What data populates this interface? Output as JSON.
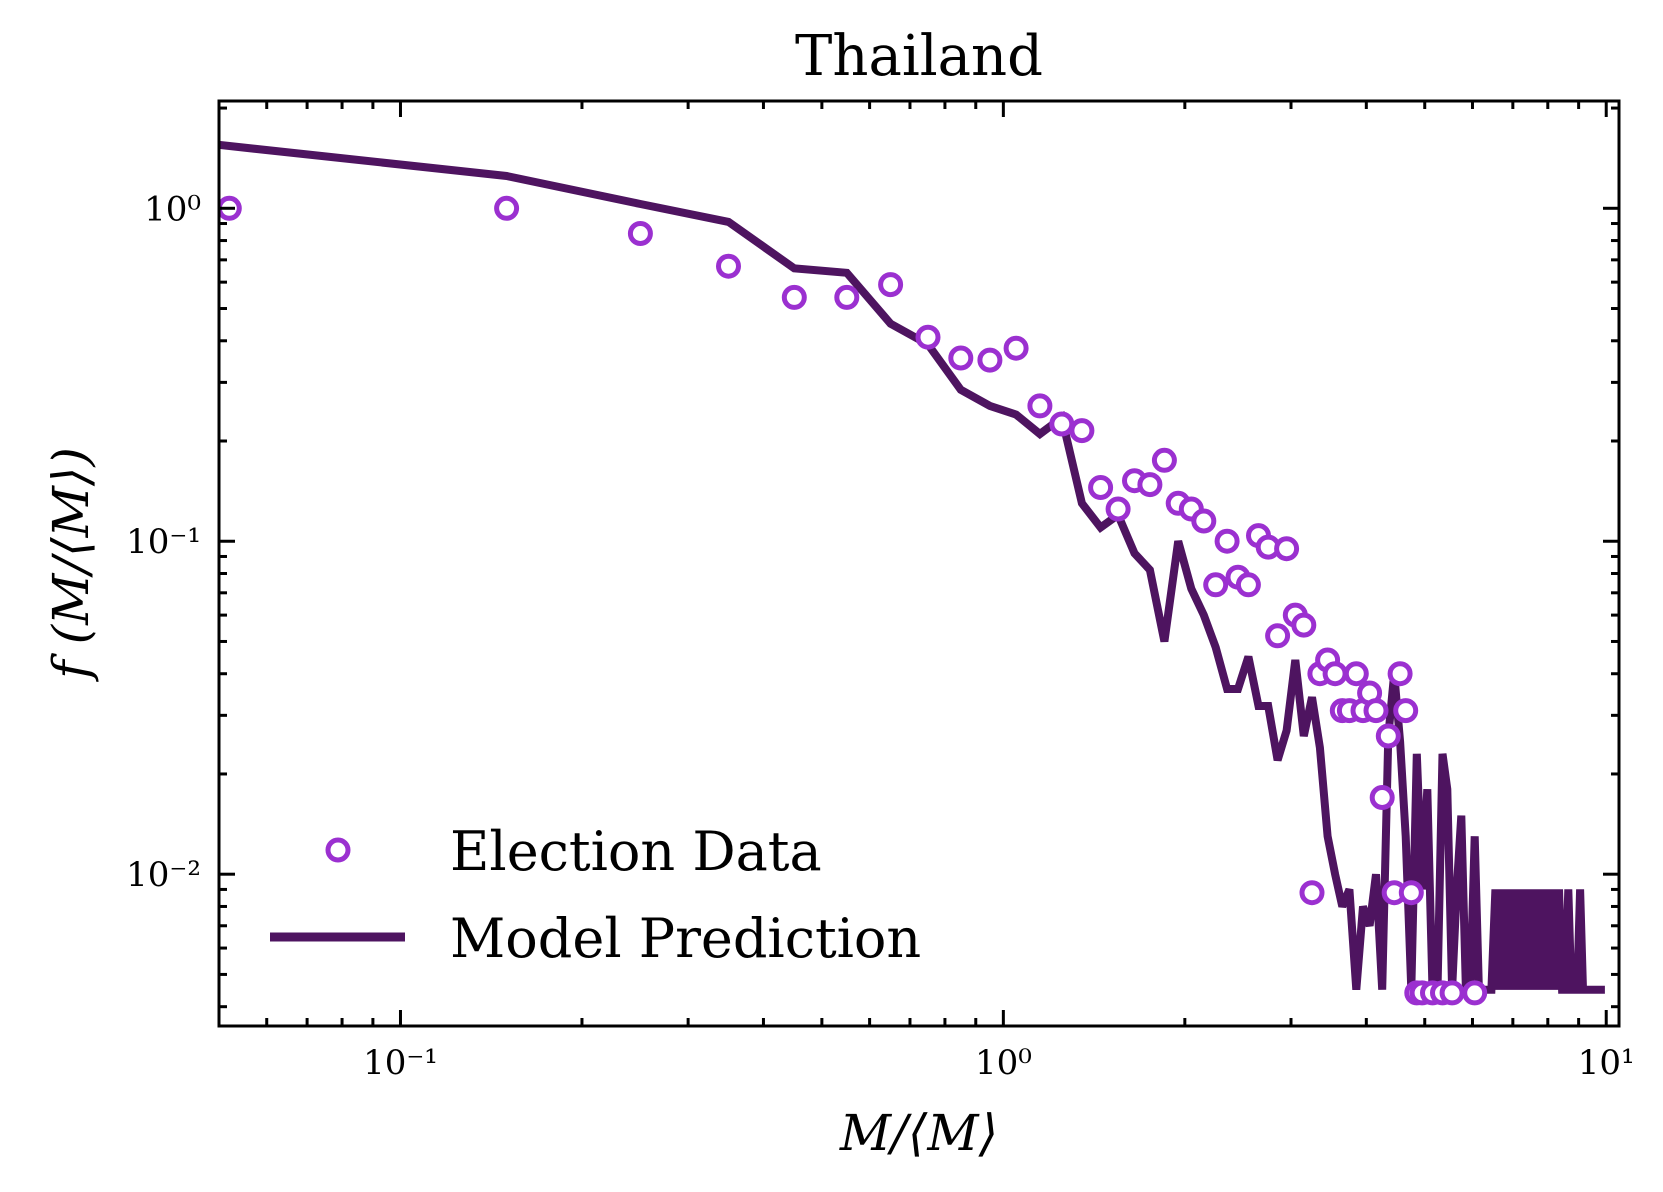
{
  "chart_data": {
    "type": "scatter",
    "title": "Thailand",
    "xlabel": "M/⟨M⟩",
    "ylabel": "f (M/⟨M⟩)",
    "xscale": "log",
    "yscale": "log",
    "xlim": [
      0.05,
      10.5
    ],
    "ylim": [
      0.0035,
      2.1
    ],
    "grid": false,
    "legend_position": "lower-left",
    "colors": {
      "election": "#9b30d0",
      "model": "#4e1460"
    },
    "x_ticks": [
      {
        "value": 0.1,
        "label": "10⁻¹"
      },
      {
        "value": 1,
        "label": "10⁰"
      },
      {
        "value": 10,
        "label": "10¹"
      }
    ],
    "y_ticks": [
      {
        "value": 1,
        "label": "10⁰"
      },
      {
        "value": 0.1,
        "label": "10⁻¹"
      },
      {
        "value": 0.01,
        "label": "10⁻²"
      }
    ],
    "series": [
      {
        "name": "Election Data",
        "kind": "markers",
        "x": [
          0.052,
          0.15,
          0.25,
          0.35,
          0.45,
          0.55,
          0.65,
          0.75,
          0.85,
          0.95,
          1.05,
          1.15,
          1.25,
          1.35,
          1.45,
          1.55,
          1.65,
          1.75,
          1.85,
          1.95,
          2.05,
          2.15,
          2.25,
          2.35,
          2.45,
          2.55,
          2.65,
          2.75,
          2.85,
          2.95,
          3.05,
          3.15,
          3.25,
          3.35,
          3.45,
          3.55,
          3.65,
          3.75,
          3.85,
          3.95,
          4.05,
          4.15,
          4.25,
          4.35,
          4.45,
          4.55,
          4.65,
          4.75,
          4.85,
          4.95,
          5.15,
          5.35,
          5.55,
          6.05
        ],
        "y": [
          1.0,
          1.0,
          0.84,
          0.67,
          0.54,
          0.54,
          0.59,
          0.41,
          0.355,
          0.35,
          0.38,
          0.255,
          0.225,
          0.215,
          0.145,
          0.125,
          0.152,
          0.148,
          0.175,
          0.13,
          0.125,
          0.115,
          0.074,
          0.1,
          0.078,
          0.074,
          0.104,
          0.096,
          0.052,
          0.095,
          0.06,
          0.056,
          0.0088,
          0.04,
          0.044,
          0.04,
          0.031,
          0.031,
          0.04,
          0.031,
          0.035,
          0.031,
          0.017,
          0.026,
          0.0088,
          0.04,
          0.031,
          0.0088,
          0.0044,
          0.0044,
          0.0044,
          0.0044,
          0.0044,
          0.0044
        ]
      },
      {
        "name": "Model Prediction",
        "kind": "line",
        "x": [
          0.05,
          0.15,
          0.25,
          0.35,
          0.45,
          0.55,
          0.65,
          0.75,
          0.85,
          0.95,
          1.05,
          1.15,
          1.25,
          1.35,
          1.45,
          1.55,
          1.65,
          1.75,
          1.85,
          1.95,
          2.05,
          2.15,
          2.25,
          2.35,
          2.45,
          2.55,
          2.65,
          2.75,
          2.85,
          2.95,
          3.05,
          3.15,
          3.25,
          3.35,
          3.45,
          3.55,
          3.65,
          3.75,
          3.85,
          3.95,
          4.05,
          4.15,
          4.25,
          4.35,
          4.45,
          4.55,
          4.65,
          4.75,
          4.85,
          4.95,
          5.05,
          5.15,
          5.25,
          5.35,
          5.45,
          5.55,
          5.65,
          5.75,
          5.85,
          5.95,
          6.05,
          6.15,
          6.25,
          6.35,
          6.45,
          6.55,
          6.65,
          6.75,
          6.85,
          6.95,
          7.05,
          7.15,
          7.25,
          7.35,
          7.45,
          7.55,
          7.65,
          7.75,
          7.85,
          7.95,
          8.05,
          8.15,
          8.25,
          8.35,
          8.45,
          8.55,
          8.65,
          8.75,
          8.85,
          8.95,
          9.05,
          9.15,
          9.25,
          9.35,
          9.45,
          9.55,
          9.65,
          9.75,
          9.85,
          9.95
        ],
        "y": [
          1.55,
          1.25,
          1.03,
          0.91,
          0.66,
          0.64,
          0.45,
          0.39,
          0.285,
          0.255,
          0.24,
          0.21,
          0.235,
          0.13,
          0.11,
          0.12,
          0.092,
          0.082,
          0.05,
          0.1,
          0.072,
          0.06,
          0.048,
          0.036,
          0.036,
          0.045,
          0.032,
          0.032,
          0.022,
          0.027,
          0.044,
          0.026,
          0.034,
          0.024,
          0.013,
          0.01,
          0.008,
          0.009,
          0.0045,
          0.008,
          0.007,
          0.01,
          0.0045,
          0.026,
          0.04,
          0.025,
          0.013,
          0.0045,
          0.023,
          0.009,
          0.018,
          0.0045,
          0.0045,
          0.023,
          0.018,
          0.0045,
          0.009,
          0.015,
          0.0045,
          0.0045,
          0.013,
          0.0045,
          0.0045,
          0.0045,
          0.0045,
          0.009,
          0.0045,
          0.009,
          0.0045,
          0.009,
          0.0045,
          0.009,
          0.0045,
          0.009,
          0.0045,
          0.009,
          0.0045,
          0.009,
          0.0045,
          0.009,
          0.0045,
          0.009,
          0.0045,
          0.009,
          0.0045,
          0.0045,
          0.009,
          0.0045,
          0.0045,
          0.0045,
          0.009,
          0.0045,
          0.0045,
          0.0045,
          0.0045,
          0.0045,
          0.0045,
          0.0045,
          0.0045,
          0.0045
        ]
      }
    ]
  }
}
